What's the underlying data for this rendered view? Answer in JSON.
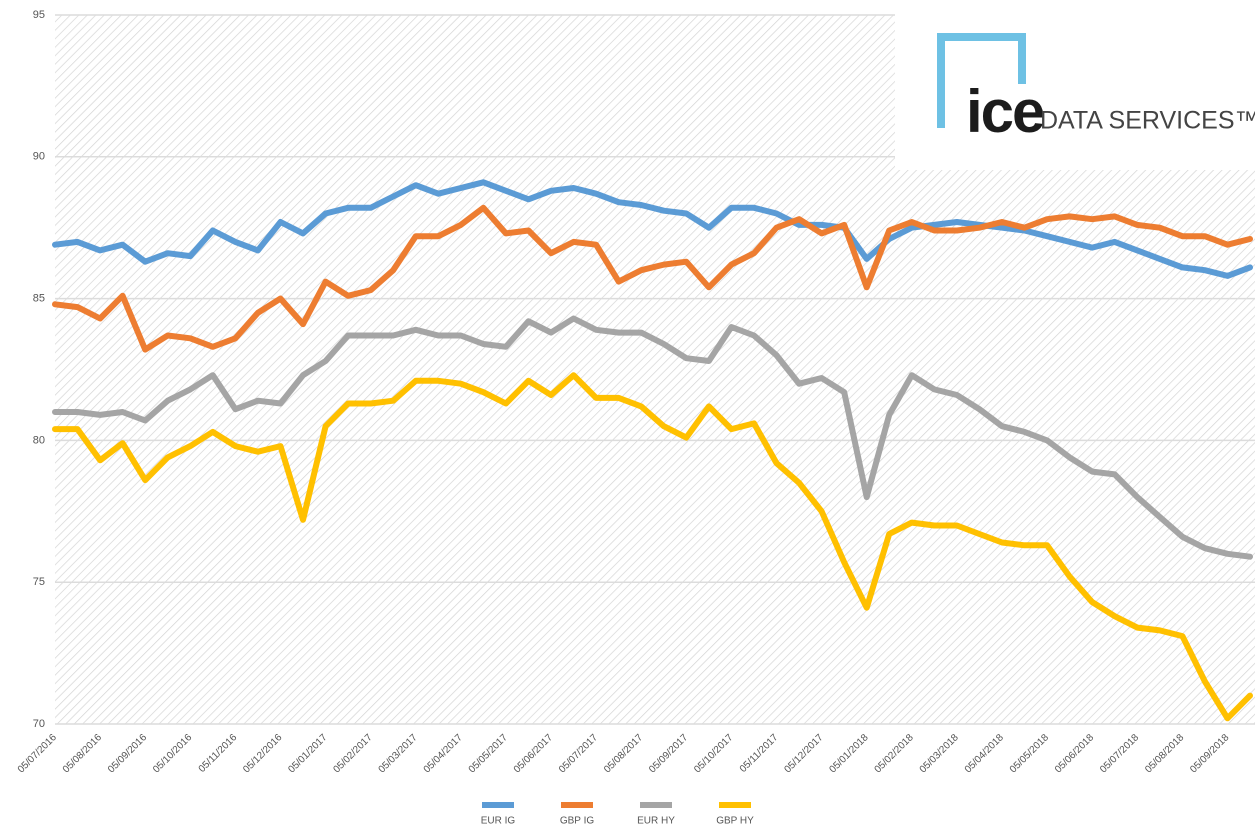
{
  "chart_data": {
    "type": "line",
    "logo": [
      "ice",
      "DATA SERVICES™"
    ],
    "categories": [
      "05/07/2016",
      null,
      "05/08/2016",
      null,
      "05/09/2016",
      null,
      "05/10/2016",
      null,
      "05/11/2016",
      null,
      "05/12/2016",
      null,
      "05/01/2017",
      null,
      "05/02/2017",
      null,
      "05/03/2017",
      null,
      "05/04/2017",
      null,
      "05/05/2017",
      null,
      "05/06/2017",
      null,
      "05/07/2017",
      null,
      "05/08/2017",
      null,
      "05/09/2017",
      null,
      "05/10/2017",
      null,
      "05/11/2017",
      null,
      "05/12/2017",
      null,
      "05/01/2018",
      null,
      "05/02/2018",
      null,
      "05/03/2018",
      null,
      "05/04/2018",
      null,
      "05/05/2018",
      null,
      "05/06/2018",
      null,
      "05/07/2018",
      null,
      "05/08/2018",
      null,
      "05/09/2018",
      null
    ],
    "series": [
      {
        "name": "EUR IG",
        "color": "#5b9bd5",
        "values": [
          86.9,
          87.0,
          86.7,
          86.9,
          86.3,
          86.6,
          86.5,
          87.4,
          87.0,
          86.7,
          87.7,
          87.3,
          88.0,
          88.2,
          88.2,
          88.6,
          89.0,
          88.7,
          88.9,
          89.1,
          88.8,
          88.5,
          88.8,
          88.9,
          88.7,
          88.4,
          88.3,
          88.1,
          88.0,
          87.5,
          88.2,
          88.2,
          88.0,
          87.6,
          87.6,
          87.5,
          86.4,
          87.1,
          87.5,
          87.6,
          87.7,
          87.6,
          87.5,
          87.4,
          87.2,
          87.0,
          86.8,
          87.0,
          86.7,
          86.4,
          86.1,
          86.0,
          85.8,
          86.1
        ]
      },
      {
        "name": "GBP IG",
        "color": "#ed7d31",
        "values": [
          84.8,
          84.7,
          84.3,
          85.1,
          83.2,
          83.7,
          83.6,
          83.3,
          83.6,
          84.5,
          85.0,
          84.1,
          85.6,
          85.1,
          85.3,
          86.0,
          87.2,
          87.2,
          87.6,
          88.2,
          87.3,
          87.4,
          86.6,
          87.0,
          86.9,
          85.6,
          86.0,
          86.2,
          86.3,
          85.4,
          86.2,
          86.6,
          87.5,
          87.8,
          87.3,
          87.6,
          85.4,
          87.4,
          87.7,
          87.4,
          87.4,
          87.5,
          87.7,
          87.5,
          87.8,
          87.9,
          87.8,
          87.9,
          87.6,
          87.5,
          87.2,
          87.2,
          86.9,
          87.1
        ]
      },
      {
        "name": "EUR HY",
        "color": "#a5a5a5",
        "values": [
          81.0,
          81.0,
          80.9,
          81.0,
          80.7,
          81.4,
          81.8,
          82.3,
          81.1,
          81.4,
          81.3,
          82.3,
          82.8,
          83.7,
          83.7,
          83.7,
          83.9,
          83.7,
          83.7,
          83.4,
          83.3,
          84.2,
          83.8,
          84.3,
          83.9,
          83.8,
          83.8,
          83.4,
          82.9,
          82.8,
          84.0,
          83.7,
          83.0,
          82.0,
          82.2,
          81.7,
          78.0,
          80.9,
          82.3,
          81.8,
          81.6,
          81.1,
          80.5,
          80.3,
          80.0,
          79.4,
          78.9,
          78.8,
          78.0,
          77.3,
          76.6,
          76.2,
          76.0,
          75.9
        ]
      },
      {
        "name": "GBP HY",
        "color": "#ffc000",
        "values": [
          80.4,
          80.4,
          79.3,
          79.9,
          78.6,
          79.4,
          79.8,
          80.3,
          79.8,
          79.6,
          79.8,
          77.2,
          80.5,
          81.3,
          81.3,
          81.4,
          82.1,
          82.1,
          82.0,
          81.7,
          81.3,
          82.1,
          81.6,
          82.3,
          81.5,
          81.5,
          81.2,
          80.5,
          80.1,
          81.2,
          80.4,
          80.6,
          79.2,
          78.5,
          77.5,
          75.7,
          74.1,
          76.7,
          77.1,
          77.0,
          77.0,
          76.7,
          76.4,
          76.3,
          76.3,
          75.2,
          74.3,
          73.8,
          73.4,
          73.3,
          73.1,
          71.5,
          70.2,
          71.0
        ]
      }
    ],
    "ylim": [
      70,
      95
    ],
    "yticks": [
      70,
      75,
      80,
      85,
      90,
      95
    ],
    "grid": true,
    "legend": "bottom"
  }
}
